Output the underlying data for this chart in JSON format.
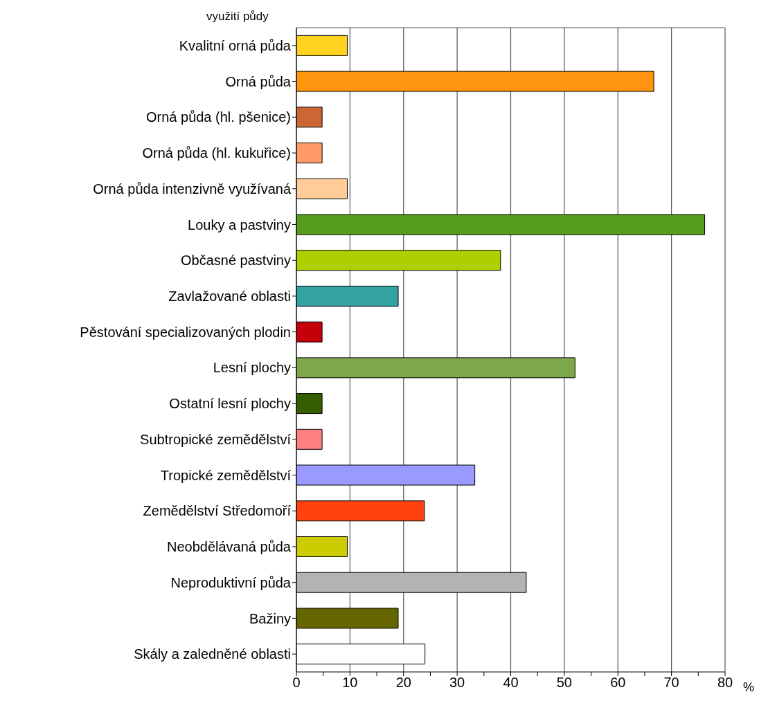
{
  "chart_data": {
    "type": "bar",
    "orientation": "horizontal",
    "ylabel": "využití půdy",
    "xlabel": "%",
    "categories": [
      "Kvalitní orná půda",
      "Orná půda",
      "Orná půda (hl. pšenice)",
      "Orná půda (hl. kukuřice)",
      "Orná půda intenzivně využívaná",
      "Louky a pastviny",
      "Občasné pastviny",
      "Zavlažované oblasti",
      "Pěstování specializovaných plodin",
      "Lesní plochy",
      "Ostatní lesní plochy",
      "Subtropické zemědělství",
      "Tropické zemědělství",
      "Zemědělství Středomoří",
      "Neobdělávaná půda",
      "Neproduktivní půda",
      "Bažiny",
      "Skály a zaledněné oblasti"
    ],
    "values": [
      9.5,
      66.7,
      4.8,
      4.8,
      9.5,
      76.2,
      38.1,
      19,
      4.8,
      52,
      4.8,
      4.8,
      33.3,
      23.9,
      9.5,
      42.9,
      19,
      24
    ],
    "colors": [
      "#ffd320",
      "#ff950e",
      "#cc6633",
      "#ff9966",
      "#ffcc99",
      "#579d1c",
      "#aecf00",
      "#33a3a3",
      "#c5000b",
      "#7ea64a",
      "#355e00",
      "#ff8080",
      "#9999ff",
      "#ff420e",
      "#cccc00",
      "#b3b3b3",
      "#666600",
      "#ffffff"
    ],
    "xlim": [
      0,
      80
    ],
    "xticks": [
      0,
      {
        "value": 5,
        "label": null
      },
      10,
      {
        "value": 15,
        "label": null
      },
      20,
      {
        "value": 25,
        "label": null
      },
      30,
      {
        "value": 35,
        "label": null
      },
      40,
      {
        "value": 45,
        "label": null
      },
      50,
      {
        "value": 55,
        "label": null
      },
      60,
      {
        "value": 65,
        "label": null
      },
      70,
      {
        "value": 75,
        "label": null
      },
      80
    ],
    "grid": "x"
  }
}
